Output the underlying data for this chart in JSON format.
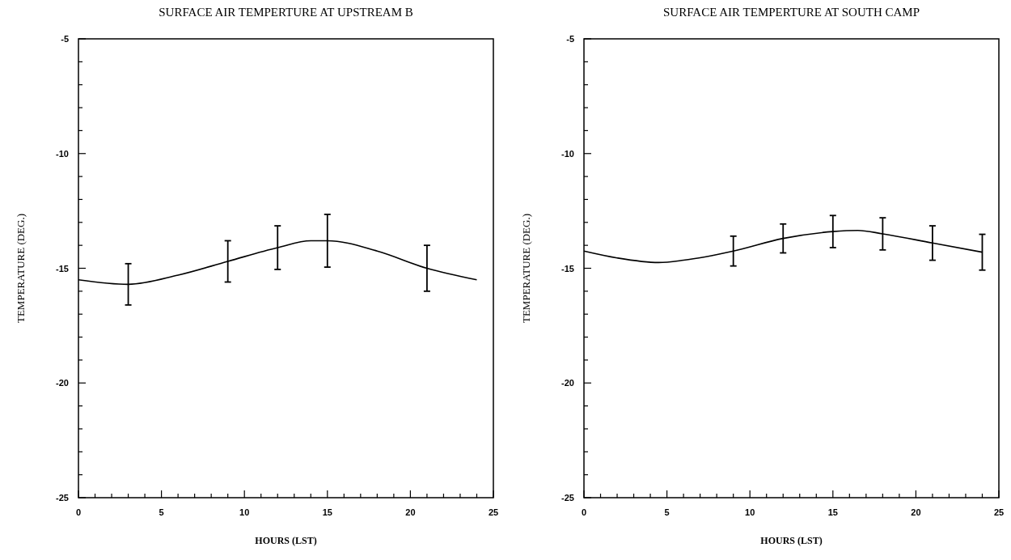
{
  "chart_data": [
    {
      "type": "line",
      "title": "SURFACE AIR TEMPERTURE AT UPSTREAM B",
      "xlabel": "HOURS (LST)",
      "ylabel": "TEMPERATURE (DEG.)",
      "xlim": [
        0,
        25
      ],
      "ylim": [
        -25,
        -5
      ],
      "xticks": [
        0,
        {
          "value": 1,
          "label": null
        },
        {
          "value": 2,
          "label": null
        },
        {
          "value": 3,
          "label": null
        },
        {
          "value": 4,
          "label": null
        },
        5,
        {
          "value": 6,
          "label": null
        },
        {
          "value": 7,
          "label": null
        },
        {
          "value": 8,
          "label": null
        },
        {
          "value": 9,
          "label": null
        },
        10,
        {
          "value": 11,
          "label": null
        },
        {
          "value": 12,
          "label": null
        },
        {
          "value": 13,
          "label": null
        },
        {
          "value": 14,
          "label": null
        },
        15,
        {
          "value": 16,
          "label": null
        },
        {
          "value": 17,
          "label": null
        },
        {
          "value": 18,
          "label": null
        },
        {
          "value": 19,
          "label": null
        },
        20,
        {
          "value": 21,
          "label": null
        },
        {
          "value": 22,
          "label": null
        },
        {
          "value": 23,
          "label": null
        },
        {
          "value": 24,
          "label": null
        },
        25
      ],
      "yticks": [
        -25,
        {
          "value": -24,
          "label": null
        },
        {
          "value": -23,
          "label": null
        },
        {
          "value": -22,
          "label": null
        },
        {
          "value": -21,
          "label": null
        },
        -20,
        {
          "value": -19,
          "label": null
        },
        {
          "value": -18,
          "label": null
        },
        {
          "value": -17,
          "label": null
        },
        {
          "value": -16,
          "label": null
        },
        -15,
        {
          "value": -14,
          "label": null
        },
        {
          "value": -13,
          "label": null
        },
        {
          "value": -12,
          "label": null
        },
        {
          "value": -11,
          "label": null
        },
        -10,
        {
          "value": -9,
          "label": null
        },
        {
          "value": -8,
          "label": null
        },
        {
          "value": -7,
          "label": null
        },
        {
          "value": -6,
          "label": null
        },
        -5
      ],
      "grid": false,
      "marker": "none",
      "line_style": "solid",
      "series": [
        {
          "color": "#000000",
          "x": [
            0,
            3,
            6,
            9,
            12,
            14,
            15,
            18,
            21,
            24
          ],
          "values": [
            -15.5,
            -15.7,
            -15.3,
            -14.7,
            -14.1,
            -13.8,
            -13.8,
            -14.25,
            -15.0,
            -15.5
          ],
          "errors": [
            null,
            0.9,
            null,
            0.9,
            0.95,
            null,
            1.15,
            null,
            1.0,
            null
          ]
        }
      ]
    },
    {
      "type": "line",
      "title": "SURFACE AIR TEMPERTURE AT SOUTH CAMP",
      "xlabel": "HOURS (LST)",
      "ylabel": "TEMPERATURE (DEG.)",
      "xlim": [
        0,
        25
      ],
      "ylim": [
        -25,
        -5
      ],
      "xticks": [
        0,
        {
          "value": 1,
          "label": null
        },
        {
          "value": 2,
          "label": null
        },
        {
          "value": 3,
          "label": null
        },
        {
          "value": 4,
          "label": null
        },
        5,
        {
          "value": 6,
          "label": null
        },
        {
          "value": 7,
          "label": null
        },
        {
          "value": 8,
          "label": null
        },
        {
          "value": 9,
          "label": null
        },
        10,
        {
          "value": 11,
          "label": null
        },
        {
          "value": 12,
          "label": null
        },
        {
          "value": 13,
          "label": null
        },
        {
          "value": 14,
          "label": null
        },
        15,
        {
          "value": 16,
          "label": null
        },
        {
          "value": 17,
          "label": null
        },
        {
          "value": 18,
          "label": null
        },
        {
          "value": 19,
          "label": null
        },
        20,
        {
          "value": 21,
          "label": null
        },
        {
          "value": 22,
          "label": null
        },
        {
          "value": 23,
          "label": null
        },
        {
          "value": 24,
          "label": null
        },
        25
      ],
      "yticks": [
        -25,
        {
          "value": -24,
          "label": null
        },
        {
          "value": -23,
          "label": null
        },
        {
          "value": -22,
          "label": null
        },
        {
          "value": -21,
          "label": null
        },
        -20,
        {
          "value": -19,
          "label": null
        },
        {
          "value": -18,
          "label": null
        },
        {
          "value": -17,
          "label": null
        },
        {
          "value": -16,
          "label": null
        },
        -15,
        {
          "value": -14,
          "label": null
        },
        {
          "value": -13,
          "label": null
        },
        {
          "value": -12,
          "label": null
        },
        {
          "value": -11,
          "label": null
        },
        -10,
        {
          "value": -9,
          "label": null
        },
        {
          "value": -8,
          "label": null
        },
        {
          "value": -7,
          "label": null
        },
        {
          "value": -6,
          "label": null
        },
        -5
      ],
      "grid": false,
      "marker": "none",
      "line_style": "solid",
      "series": [
        {
          "color": "#000000",
          "x": [
            0,
            2,
            4.5,
            6,
            9,
            12,
            15,
            16.5,
            18,
            21,
            24
          ],
          "values": [
            -14.25,
            -14.55,
            -14.75,
            -14.65,
            -14.25,
            -13.7,
            -13.4,
            -13.35,
            -13.5,
            -13.9,
            -14.3
          ],
          "errors": [
            null,
            null,
            null,
            null,
            0.65,
            0.63,
            0.7,
            null,
            0.7,
            0.75,
            0.78
          ]
        }
      ]
    }
  ]
}
